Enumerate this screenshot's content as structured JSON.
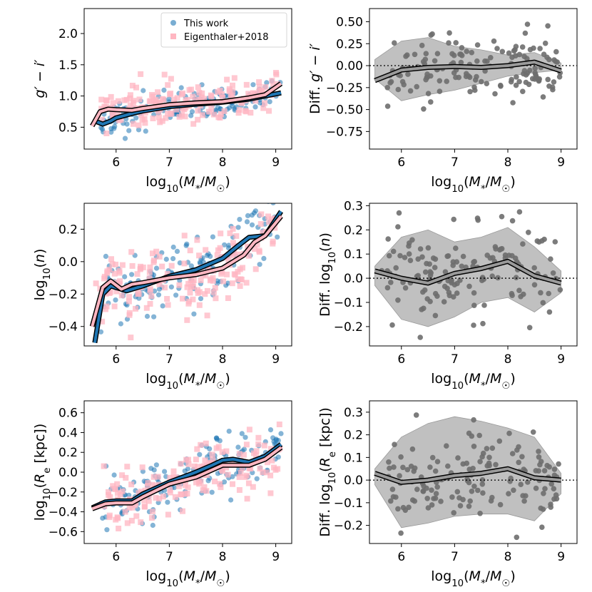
{
  "figure": {
    "x_axis_label": "log10(M*/M☉)"
  },
  "chart_data": [
    {
      "id": "p1",
      "type": "scatter",
      "ylabel": "g′ − i′",
      "xlim": [
        5.4,
        9.3
      ],
      "ylim": [
        0.15,
        2.4
      ],
      "xticks": [
        6,
        7,
        8,
        9
      ],
      "xtick_labels": [
        "6",
        "7",
        "8",
        "9"
      ],
      "yticks": [
        0.5,
        1.0,
        1.5,
        2.0
      ],
      "ytick_labels": [
        "0.5",
        "1.0",
        "1.5",
        "2.0"
      ],
      "legend": {
        "position": "top-right",
        "entries": [
          "This work",
          "Eigenthaler+2018"
        ]
      },
      "series": [
        {
          "name": "This work",
          "kind": "scatter-running",
          "color": "#1f77b4",
          "n": 150,
          "seed": 11,
          "running": [
            [
              5.6,
              0.6
            ],
            [
              5.75,
              0.55
            ],
            [
              5.9,
              0.6
            ],
            [
              6.0,
              0.65
            ],
            [
              6.3,
              0.72
            ],
            [
              6.5,
              0.76
            ],
            [
              7.0,
              0.83
            ],
            [
              7.5,
              0.87
            ],
            [
              8.0,
              0.9
            ],
            [
              8.5,
              0.95
            ],
            [
              9.1,
              1.05
            ]
          ],
          "scatter_sd": 0.13
        },
        {
          "name": "Eigenthaler+2018",
          "kind": "scatter-running",
          "color": "#ffb6c1",
          "n": 170,
          "seed": 23,
          "running": [
            [
              5.55,
              0.52
            ],
            [
              5.7,
              0.75
            ],
            [
              5.85,
              0.79
            ],
            [
              6.0,
              0.78
            ],
            [
              6.3,
              0.77
            ],
            [
              6.5,
              0.8
            ],
            [
              7.0,
              0.86
            ],
            [
              7.5,
              0.89
            ],
            [
              8.0,
              0.91
            ],
            [
              8.5,
              0.97
            ],
            [
              8.8,
              1.02
            ],
            [
              9.1,
              1.2
            ]
          ],
          "scatter_sd": 0.17
        }
      ]
    },
    {
      "id": "p2",
      "type": "scatter",
      "ylabel": "Diff. g′ − i′",
      "xlim": [
        5.4,
        9.3
      ],
      "ylim": [
        -0.95,
        0.65
      ],
      "xticks": [
        6,
        7,
        8,
        9
      ],
      "xtick_labels": [
        "6",
        "7",
        "8",
        "9"
      ],
      "yticks": [
        -0.75,
        -0.5,
        -0.25,
        0.0,
        0.25,
        0.5
      ],
      "ytick_labels": [
        "−0.75",
        "−0.50",
        "−0.25",
        "0.00",
        "0.25",
        "0.50"
      ],
      "zero_line": 0,
      "band": {
        "x": [
          5.5,
          6.0,
          6.5,
          7.0,
          7.5,
          8.0,
          8.5,
          9.0
        ],
        "upper": [
          0.07,
          0.28,
          0.32,
          0.22,
          0.18,
          0.12,
          0.15,
          0.03
        ],
        "lower": [
          -0.15,
          -0.4,
          -0.33,
          -0.28,
          -0.2,
          -0.12,
          -0.08,
          -0.05
        ]
      },
      "series": [
        {
          "name": "Difference",
          "kind": "scatter-running",
          "color": "#808080",
          "n": 150,
          "seed": 37,
          "running": [
            [
              5.5,
              -0.17
            ],
            [
              6.0,
              -0.05
            ],
            [
              6.5,
              -0.02
            ],
            [
              7.0,
              -0.01
            ],
            [
              7.5,
              -0.02
            ],
            [
              8.0,
              0.0
            ],
            [
              8.5,
              0.04
            ],
            [
              9.0,
              -0.06
            ]
          ],
          "scatter_sd": 0.16
        }
      ]
    },
    {
      "id": "p3",
      "type": "scatter",
      "ylabel": "log10(n)",
      "xlim": [
        5.4,
        9.3
      ],
      "ylim": [
        -0.52,
        0.36
      ],
      "xticks": [
        6,
        7,
        8,
        9
      ],
      "xtick_labels": [
        "6",
        "7",
        "8",
        "9"
      ],
      "yticks": [
        -0.4,
        -0.2,
        0.0,
        0.2
      ],
      "ytick_labels": [
        "−0.4",
        "−0.2",
        "0.0",
        "0.2"
      ],
      "series": [
        {
          "name": "This work",
          "kind": "scatter-running",
          "color": "#1f77b4",
          "n": 150,
          "seed": 53,
          "running": [
            [
              5.6,
              -0.5
            ],
            [
              5.75,
              -0.2
            ],
            [
              5.9,
              -0.15
            ],
            [
              6.0,
              -0.16
            ],
            [
              6.2,
              -0.18
            ],
            [
              6.5,
              -0.15
            ],
            [
              7.0,
              -0.09
            ],
            [
              7.5,
              -0.05
            ],
            [
              8.0,
              0.02
            ],
            [
              8.3,
              0.1
            ],
            [
              8.5,
              0.15
            ],
            [
              8.8,
              0.16
            ],
            [
              9.1,
              0.31
            ]
          ],
          "scatter_sd": 0.1
        },
        {
          "name": "Eigenthaler+2018",
          "kind": "scatter-running",
          "color": "#ffb6c1",
          "n": 170,
          "seed": 71,
          "running": [
            [
              5.55,
              -0.4
            ],
            [
              5.75,
              -0.16
            ],
            [
              5.9,
              -0.12
            ],
            [
              6.1,
              -0.17
            ],
            [
              6.3,
              -0.14
            ],
            [
              6.5,
              -0.13
            ],
            [
              7.0,
              -0.1
            ],
            [
              7.5,
              -0.08
            ],
            [
              8.0,
              -0.04
            ],
            [
              8.4,
              0.04
            ],
            [
              8.6,
              0.12
            ],
            [
              8.8,
              0.16
            ],
            [
              9.1,
              0.28
            ]
          ],
          "scatter_sd": 0.11
        }
      ]
    },
    {
      "id": "p4",
      "type": "scatter",
      "ylabel": "Diff. log10(n)",
      "xlim": [
        5.4,
        9.3
      ],
      "ylim": [
        -0.28,
        0.31
      ],
      "xticks": [
        6,
        7,
        8,
        9
      ],
      "xtick_labels": [
        "6",
        "7",
        "8",
        "9"
      ],
      "yticks": [
        -0.2,
        -0.1,
        0.0,
        0.1,
        0.2,
        0.3
      ],
      "ytick_labels": [
        "−0.2",
        "−0.1",
        "0.0",
        "0.1",
        "0.2",
        "0.3"
      ],
      "zero_line": 0,
      "band": {
        "x": [
          5.5,
          6.0,
          6.5,
          7.0,
          7.5,
          8.0,
          8.5,
          9.0
        ],
        "upper": [
          0.05,
          0.17,
          0.2,
          0.15,
          0.17,
          0.21,
          0.13,
          0.03
        ],
        "lower": [
          -0.03,
          -0.17,
          -0.2,
          -0.16,
          -0.1,
          -0.08,
          -0.14,
          -0.06
        ]
      },
      "series": [
        {
          "name": "Difference",
          "kind": "scatter-running",
          "color": "#808080",
          "n": 150,
          "seed": 89,
          "running": [
            [
              5.5,
              0.03
            ],
            [
              6.0,
              0.0
            ],
            [
              6.5,
              -0.02
            ],
            [
              7.0,
              0.02
            ],
            [
              7.5,
              0.04
            ],
            [
              8.0,
              0.07
            ],
            [
              8.5,
              0.01
            ],
            [
              9.0,
              -0.02
            ]
          ],
          "scatter_sd": 0.09
        }
      ]
    },
    {
      "id": "p5",
      "type": "scatter",
      "ylabel": "log10(Re [kpc])",
      "xlim": [
        5.4,
        9.3
      ],
      "ylim": [
        -0.72,
        0.72
      ],
      "xticks": [
        6,
        7,
        8,
        9
      ],
      "xtick_labels": [
        "6",
        "7",
        "8",
        "9"
      ],
      "yticks": [
        -0.6,
        -0.4,
        -0.2,
        0.0,
        0.2,
        0.4,
        0.6
      ],
      "ytick_labels": [
        "−0.6",
        "−0.4",
        "−0.2",
        "0.0",
        "0.2",
        "0.4",
        "0.6"
      ],
      "series": [
        {
          "name": "This work",
          "kind": "scatter-running",
          "color": "#1f77b4",
          "n": 150,
          "seed": 101,
          "running": [
            [
              5.55,
              -0.36
            ],
            [
              5.8,
              -0.3
            ],
            [
              6.0,
              -0.29
            ],
            [
              6.3,
              -0.29
            ],
            [
              6.5,
              -0.22
            ],
            [
              7.0,
              -0.1
            ],
            [
              7.5,
              0.0
            ],
            [
              7.8,
              0.07
            ],
            [
              8.0,
              0.12
            ],
            [
              8.2,
              0.13
            ],
            [
              8.5,
              0.1
            ],
            [
              8.8,
              0.16
            ],
            [
              9.1,
              0.28
            ]
          ],
          "scatter_sd": 0.14
        },
        {
          "name": "Eigenthaler+2018",
          "kind": "scatter-running",
          "color": "#ffb6c1",
          "n": 170,
          "seed": 131,
          "running": [
            [
              5.55,
              -0.37
            ],
            [
              5.8,
              -0.32
            ],
            [
              6.0,
              -0.31
            ],
            [
              6.3,
              -0.31
            ],
            [
              6.5,
              -0.25
            ],
            [
              7.0,
              -0.12
            ],
            [
              7.5,
              -0.05
            ],
            [
              8.0,
              0.07
            ],
            [
              8.5,
              0.07
            ],
            [
              8.8,
              0.13
            ],
            [
              9.1,
              0.25
            ]
          ],
          "scatter_sd": 0.15
        }
      ]
    },
    {
      "id": "p6",
      "type": "scatter",
      "ylabel": "Diff. log10(Re [kpc])",
      "xlim": [
        5.4,
        9.3
      ],
      "ylim": [
        -0.28,
        0.35
      ],
      "xticks": [
        6,
        7,
        8,
        9
      ],
      "xtick_labels": [
        "6",
        "7",
        "8",
        "9"
      ],
      "yticks": [
        -0.2,
        -0.1,
        0.0,
        0.1,
        0.2,
        0.3
      ],
      "ytick_labels": [
        "−0.2",
        "−0.1",
        "0.0",
        "0.1",
        "0.2",
        "0.3"
      ],
      "zero_line": 0,
      "band": {
        "x": [
          5.5,
          6.0,
          6.5,
          7.0,
          7.5,
          8.0,
          8.5,
          9.0
        ],
        "upper": [
          0.05,
          0.19,
          0.25,
          0.28,
          0.26,
          0.23,
          0.19,
          0.03
        ],
        "lower": [
          -0.02,
          -0.21,
          -0.19,
          -0.16,
          -0.15,
          -0.15,
          -0.18,
          -0.06
        ]
      },
      "series": [
        {
          "name": "Difference",
          "kind": "scatter-running",
          "color": "#808080",
          "n": 150,
          "seed": 151,
          "running": [
            [
              5.5,
              0.03
            ],
            [
              6.0,
              -0.01
            ],
            [
              6.5,
              0.0
            ],
            [
              7.0,
              0.02
            ],
            [
              7.5,
              0.03
            ],
            [
              8.0,
              0.05
            ],
            [
              8.5,
              0.01
            ],
            [
              9.0,
              0.0
            ]
          ],
          "scatter_sd": 0.09
        }
      ]
    }
  ]
}
